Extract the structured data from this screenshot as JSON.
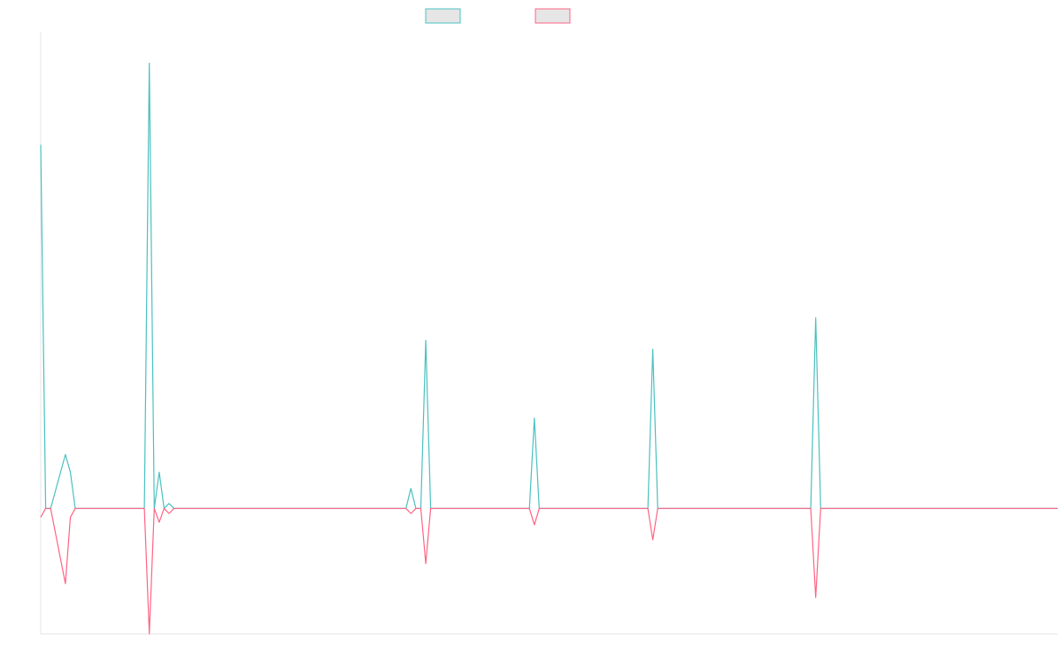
{
  "chart_data": {
    "type": "line",
    "title": "",
    "xlabel": "",
    "ylabel": "",
    "grid": false,
    "legend_position": "top-center",
    "ylim": [
      -1.0,
      3.8
    ],
    "series": [
      {
        "color": "#4BC0C0",
        "points": [
          [
            0,
            2.9
          ],
          [
            1,
            0
          ],
          [
            2,
            0
          ],
          [
            5,
            0.43
          ],
          [
            6,
            0.29
          ],
          [
            7,
            0
          ],
          [
            21,
            0
          ],
          [
            22,
            3.55
          ],
          [
            23,
            0
          ],
          [
            24,
            0.29
          ],
          [
            25,
            0
          ],
          [
            26,
            0.04
          ],
          [
            27,
            0
          ],
          [
            74,
            0
          ],
          [
            75,
            0.16
          ],
          [
            76,
            0
          ],
          [
            77,
            0
          ],
          [
            78,
            1.34
          ],
          [
            79,
            0
          ],
          [
            99,
            0
          ],
          [
            100,
            0.72
          ],
          [
            101,
            0
          ],
          [
            123,
            0
          ],
          [
            124,
            1.27
          ],
          [
            125,
            0
          ],
          [
            156,
            0
          ],
          [
            157,
            1.52
          ],
          [
            158,
            0
          ],
          [
            206,
            0
          ]
        ]
      },
      {
        "color": "#FF6384",
        "points": [
          [
            0,
            -0.07
          ],
          [
            1,
            0
          ],
          [
            2,
            0
          ],
          [
            5,
            -0.6
          ],
          [
            6,
            -0.07
          ],
          [
            7,
            0
          ],
          [
            21,
            0
          ],
          [
            22,
            -1.0
          ],
          [
            23,
            0
          ],
          [
            24,
            -0.11
          ],
          [
            25,
            0
          ],
          [
            26,
            -0.04
          ],
          [
            27,
            0
          ],
          [
            74,
            0
          ],
          [
            75,
            -0.04
          ],
          [
            76,
            0
          ],
          [
            77,
            0
          ],
          [
            78,
            -0.44
          ],
          [
            79,
            0
          ],
          [
            99,
            0
          ],
          [
            100,
            -0.13
          ],
          [
            101,
            0
          ],
          [
            123,
            0
          ],
          [
            124,
            -0.25
          ],
          [
            125,
            0
          ],
          [
            156,
            0
          ],
          [
            157,
            -0.71
          ],
          [
            158,
            0
          ],
          [
            206,
            0
          ]
        ]
      }
    ]
  }
}
